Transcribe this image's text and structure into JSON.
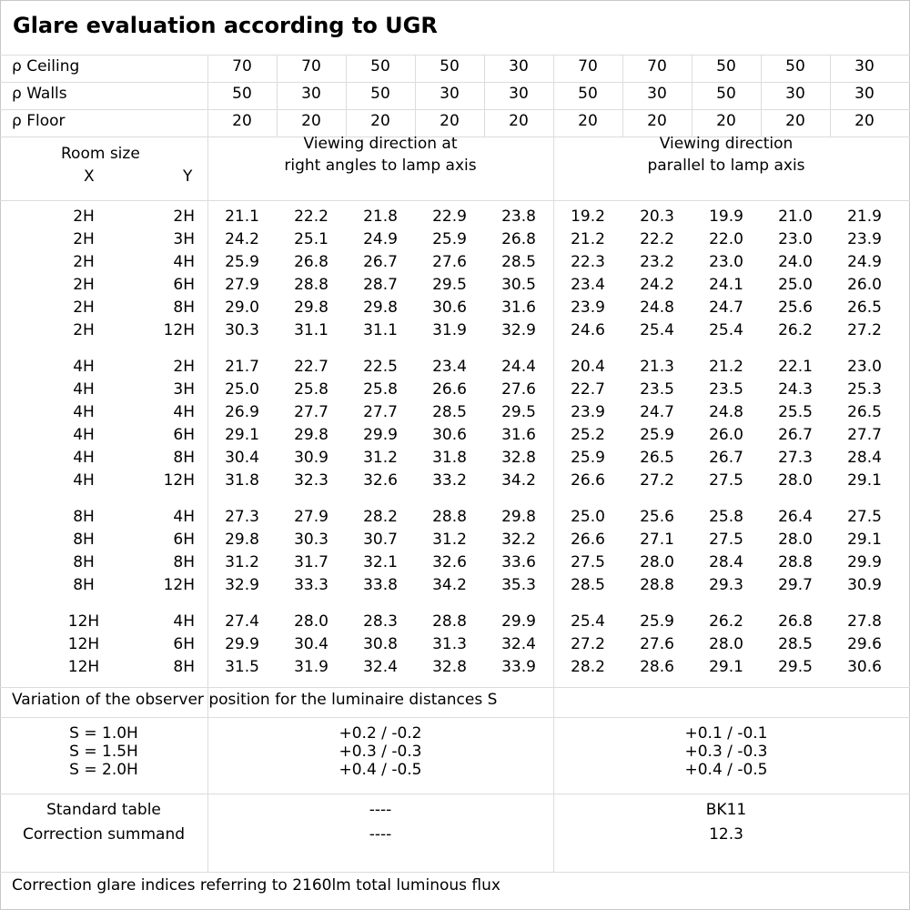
{
  "title": "Glare evaluation according to UGR",
  "reflectance_rows": [
    {
      "label": "ρ Ceiling",
      "values": [
        "70",
        "70",
        "50",
        "50",
        "30",
        "70",
        "70",
        "50",
        "50",
        "30"
      ]
    },
    {
      "label": "ρ Walls",
      "values": [
        "50",
        "30",
        "50",
        "30",
        "30",
        "50",
        "30",
        "50",
        "30",
        "30"
      ]
    },
    {
      "label": "ρ Floor",
      "values": [
        "20",
        "20",
        "20",
        "20",
        "20",
        "20",
        "20",
        "20",
        "20",
        "20"
      ]
    }
  ],
  "header": {
    "room_size": "Room size",
    "x": "X",
    "y": "Y",
    "right_angles_line1": "Viewing direction at",
    "right_angles_line2": "right angles to lamp axis",
    "parallel_line1": "Viewing direction",
    "parallel_line2": "parallel to lamp axis"
  },
  "groups": [
    [
      {
        "x": "2H",
        "y": "2H",
        "v": [
          "21.1",
          "22.2",
          "21.8",
          "22.9",
          "23.8",
          "19.2",
          "20.3",
          "19.9",
          "21.0",
          "21.9"
        ]
      },
      {
        "x": "2H",
        "y": "3H",
        "v": [
          "24.2",
          "25.1",
          "24.9",
          "25.9",
          "26.8",
          "21.2",
          "22.2",
          "22.0",
          "23.0",
          "23.9"
        ]
      },
      {
        "x": "2H",
        "y": "4H",
        "v": [
          "25.9",
          "26.8",
          "26.7",
          "27.6",
          "28.5",
          "22.3",
          "23.2",
          "23.0",
          "24.0",
          "24.9"
        ]
      },
      {
        "x": "2H",
        "y": "6H",
        "v": [
          "27.9",
          "28.8",
          "28.7",
          "29.5",
          "30.5",
          "23.4",
          "24.2",
          "24.1",
          "25.0",
          "26.0"
        ]
      },
      {
        "x": "2H",
        "y": "8H",
        "v": [
          "29.0",
          "29.8",
          "29.8",
          "30.6",
          "31.6",
          "23.9",
          "24.8",
          "24.7",
          "25.6",
          "26.5"
        ]
      },
      {
        "x": "2H",
        "y": "12H",
        "v": [
          "30.3",
          "31.1",
          "31.1",
          "31.9",
          "32.9",
          "24.6",
          "25.4",
          "25.4",
          "26.2",
          "27.2"
        ]
      }
    ],
    [
      {
        "x": "4H",
        "y": "2H",
        "v": [
          "21.7",
          "22.7",
          "22.5",
          "23.4",
          "24.4",
          "20.4",
          "21.3",
          "21.2",
          "22.1",
          "23.0"
        ]
      },
      {
        "x": "4H",
        "y": "3H",
        "v": [
          "25.0",
          "25.8",
          "25.8",
          "26.6",
          "27.6",
          "22.7",
          "23.5",
          "23.5",
          "24.3",
          "25.3"
        ]
      },
      {
        "x": "4H",
        "y": "4H",
        "v": [
          "26.9",
          "27.7",
          "27.7",
          "28.5",
          "29.5",
          "23.9",
          "24.7",
          "24.8",
          "25.5",
          "26.5"
        ]
      },
      {
        "x": "4H",
        "y": "6H",
        "v": [
          "29.1",
          "29.8",
          "29.9",
          "30.6",
          "31.6",
          "25.2",
          "25.9",
          "26.0",
          "26.7",
          "27.7"
        ]
      },
      {
        "x": "4H",
        "y": "8H",
        "v": [
          "30.4",
          "30.9",
          "31.2",
          "31.8",
          "32.8",
          "25.9",
          "26.5",
          "26.7",
          "27.3",
          "28.4"
        ]
      },
      {
        "x": "4H",
        "y": "12H",
        "v": [
          "31.8",
          "32.3",
          "32.6",
          "33.2",
          "34.2",
          "26.6",
          "27.2",
          "27.5",
          "28.0",
          "29.1"
        ]
      }
    ],
    [
      {
        "x": "8H",
        "y": "4H",
        "v": [
          "27.3",
          "27.9",
          "28.2",
          "28.8",
          "29.8",
          "25.0",
          "25.6",
          "25.8",
          "26.4",
          "27.5"
        ]
      },
      {
        "x": "8H",
        "y": "6H",
        "v": [
          "29.8",
          "30.3",
          "30.7",
          "31.2",
          "32.2",
          "26.6",
          "27.1",
          "27.5",
          "28.0",
          "29.1"
        ]
      },
      {
        "x": "8H",
        "y": "8H",
        "v": [
          "31.2",
          "31.7",
          "32.1",
          "32.6",
          "33.6",
          "27.5",
          "28.0",
          "28.4",
          "28.8",
          "29.9"
        ]
      },
      {
        "x": "8H",
        "y": "12H",
        "v": [
          "32.9",
          "33.3",
          "33.8",
          "34.2",
          "35.3",
          "28.5",
          "28.8",
          "29.3",
          "29.7",
          "30.9"
        ]
      }
    ],
    [
      {
        "x": "12H",
        "y": "4H",
        "v": [
          "27.4",
          "28.0",
          "28.3",
          "28.8",
          "29.9",
          "25.4",
          "25.9",
          "26.2",
          "26.8",
          "27.8"
        ]
      },
      {
        "x": "12H",
        "y": "6H",
        "v": [
          "29.9",
          "30.4",
          "30.8",
          "31.3",
          "32.4",
          "27.2",
          "27.6",
          "28.0",
          "28.5",
          "29.6"
        ]
      },
      {
        "x": "12H",
        "y": "8H",
        "v": [
          "31.5",
          "31.9",
          "32.4",
          "32.8",
          "33.9",
          "28.2",
          "28.6",
          "29.1",
          "29.5",
          "30.6"
        ]
      }
    ]
  ],
  "variation_label": "Variation of the observer position for the luminaire distances S",
  "variation_rows": [
    {
      "s": "S = 1.0H",
      "right": "+0.2 / -0.2",
      "parallel": "+0.1 / -0.1"
    },
    {
      "s": "S = 1.5H",
      "right": "+0.3 / -0.3",
      "parallel": "+0.3 / -0.3"
    },
    {
      "s": "S = 2.0H",
      "right": "+0.4 / -0.5",
      "parallel": "+0.4 / -0.5"
    }
  ],
  "standard_table": {
    "label": "Standard table",
    "right": "----",
    "parallel": "BK11"
  },
  "correction_summand": {
    "label": "Correction summand",
    "right": "----",
    "parallel": "12.3"
  },
  "footer": "Correction glare indices referring to 2160lm total luminous flux"
}
